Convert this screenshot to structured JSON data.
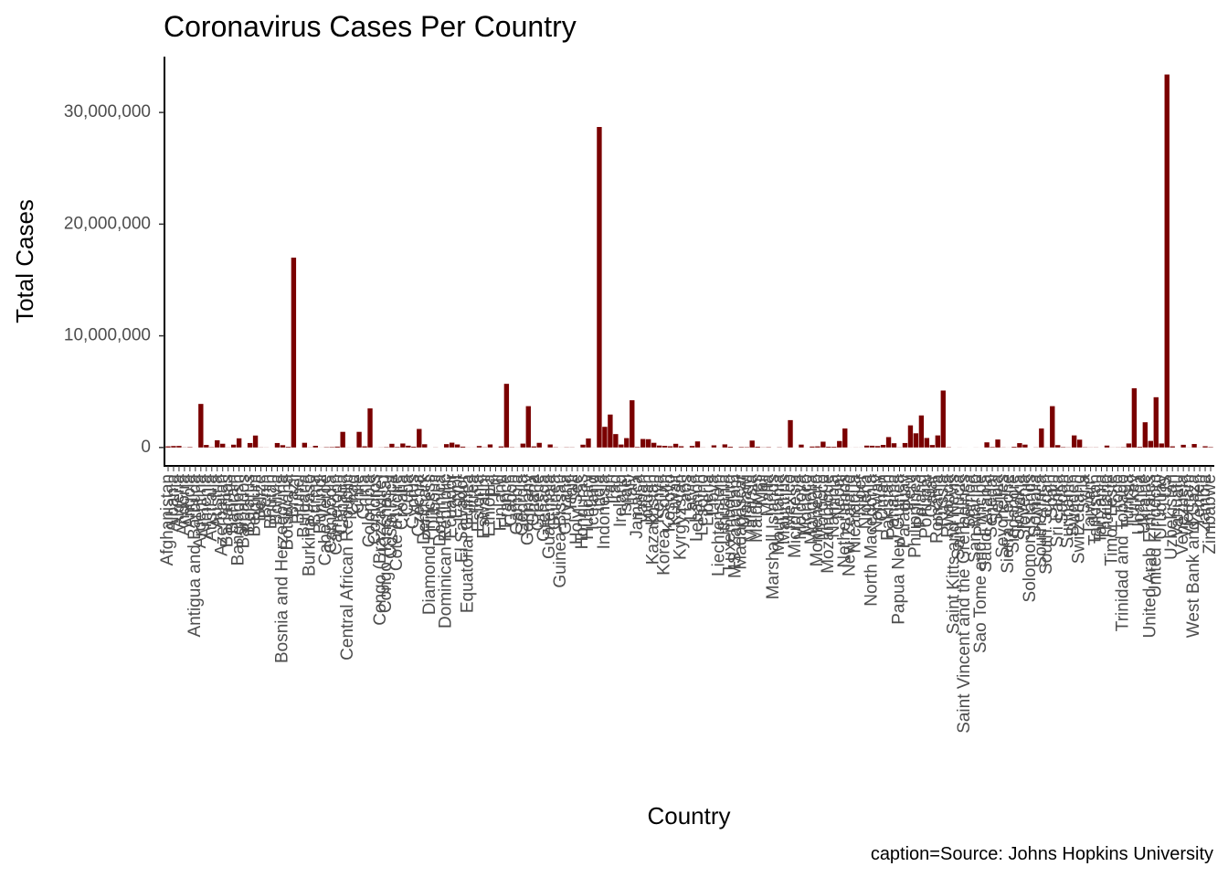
{
  "chart_data": {
    "type": "bar",
    "title": "Coronavirus Cases Per Country",
    "x_label": "Country",
    "y_label": "Total Cases",
    "caption": "caption=Source: Johns Hopkins University",
    "color": "#7a0000",
    "ylim": [
      -1650000,
      35000000
    ],
    "yticks": [
      0,
      {
        "value": 10000000,
        "label": "10,000,000"
      },
      {
        "value": 20000000,
        "label": "20,000,000"
      },
      {
        "value": 30000000,
        "label": "30,000,000"
      }
    ],
    "grid": false,
    "categories": [
      "Afghanistan",
      "Albania",
      "Algeria",
      "Andorra",
      "Angola",
      "Antigua and Barbuda",
      "Argentina",
      "Armenia",
      "Australia",
      "Austria",
      "Azerbaijan",
      "Bahamas",
      "Bahrain",
      "Bangladesh",
      "Barbados",
      "Belarus",
      "Belgium",
      "Belize",
      "Benin",
      "Bhutan",
      "Bolivia",
      "Bosnia and Herzegovina",
      "Botswana",
      "Brazil",
      "Brunei",
      "Bulgaria",
      "Burkina Faso",
      "Burma",
      "Burundi",
      "Cabo Verde",
      "Cambodia",
      "Cameroon",
      "Canada",
      "Central African Republic",
      "Chad",
      "Chile",
      "China",
      "Colombia",
      "Comoros",
      "Congo (Brazzaville)",
      "Congo (Kinshasa)",
      "Costa Rica",
      "Cote d'Ivoire",
      "Croatia",
      "Cuba",
      "Cyprus",
      "Czechia",
      "Denmark",
      "Diamond Princess",
      "Djibouti",
      "Dominica",
      "Dominican Republic",
      "Ecuador",
      "Egypt",
      "El Salvador",
      "Equatorial Guinea",
      "Eritrea",
      "Estonia",
      "Eswatini",
      "Ethiopia",
      "Fiji",
      "Finland",
      "France",
      "Gabon",
      "Gambia",
      "Georgia",
      "Germany",
      "Ghana",
      "Greece",
      "Grenada",
      "Guatemala",
      "Guinea",
      "Guinea-Bissau",
      "Guyana",
      "Haiti",
      "Holy See",
      "Honduras",
      "Hungary",
      "Iceland",
      "India",
      "Indonesia",
      "Iran",
      "Iraq",
      "Ireland",
      "Israel",
      "Italy",
      "Jamaica",
      "Japan",
      "Jordan",
      "Kazakhstan",
      "Kenya",
      "Korea, South",
      "Kosovo",
      "Kuwait",
      "Kyrgyzstan",
      "Laos",
      "Latvia",
      "Lebanon",
      "Lesotho",
      "Liberia",
      "Libya",
      "Liechtenstein",
      "Lithuania",
      "Luxembourg",
      "MS Zaandam",
      "Madagascar",
      "Malawi",
      "Malaysia",
      "Maldives",
      "Mali",
      "Malta",
      "Marshall Islands",
      "Mauritania",
      "Mauritius",
      "Mexico",
      "Micronesia",
      "Moldova",
      "Monaco",
      "Mongolia",
      "Montenegro",
      "Morocco",
      "Mozambique",
      "Namibia",
      "Nepal",
      "Netherlands",
      "New Zealand",
      "Nicaragua",
      "Niger",
      "Nigeria",
      "North Macedonia",
      "Norway",
      "Oman",
      "Pakistan",
      "Panama",
      "Papua New Guinea",
      "Paraguay",
      "Peru",
      "Philippines",
      "Poland",
      "Portugal",
      "Qatar",
      "Romania",
      "Russia",
      "Rwanda",
      "Saint Kitts and Nevis",
      "Saint Lucia",
      "Saint Vincent and the Grenadines",
      "Samoa",
      "San Marino",
      "Sao Tome and Principe",
      "Saudi Arabia",
      "Senegal",
      "Serbia",
      "Seychelles",
      "Sierra Leone",
      "Singapore",
      "Slovakia",
      "Slovenia",
      "Solomon Islands",
      "Somalia",
      "South Africa",
      "South Sudan",
      "Spain",
      "Sri Lanka",
      "Sudan",
      "Suriname",
      "Sweden",
      "Switzerland",
      "Syria",
      "Taiwan*",
      "Tajikistan",
      "Tanzania",
      "Thailand",
      "Timor-Leste",
      "Togo",
      "Trinidad and Tobago",
      "Tunisia",
      "Turkey",
      "Uganda",
      "Ukraine",
      "United Arab Emirates",
      "United Kingdom",
      "Uruguay",
      "US",
      "Uzbekistan",
      "Vanuatu",
      "Venezuela",
      "Vietnam",
      "West Bank and Gaza",
      "Yemen",
      "Zambia",
      "Zimbabwe"
    ],
    "values": [
      100000,
      132000,
      138000,
      13800,
      38000,
      1260,
      3900000,
      224000,
      30000,
      648000,
      335000,
      12000,
      250000,
      820000,
      4000,
      400000,
      1070000,
      13000,
      8200,
      1900,
      400000,
      205000,
      60000,
      17000000,
      250,
      420000,
      13500,
      150000,
      5000,
      31000,
      40000,
      80000,
      1400000,
      7000,
      5000,
      1400000,
      103000,
      3500000,
      4000,
      12000,
      33000,
      330000,
      48000,
      357000,
      160000,
      73000,
      1660000,
      290000,
      712,
      11600,
      190,
      300000,
      430000,
      270000,
      76000,
      8500,
      5300,
      131000,
      19000,
      273000,
      2000,
      94000,
      5700000,
      24000,
      6000,
      347000,
      3700000,
      95000,
      415000,
      160,
      270000,
      23000,
      3800,
      19000,
      16000,
      27,
      250000,
      808000,
      6600,
      28700000,
      1850000,
      2950000,
      1200000,
      265000,
      839000,
      4230000,
      49000,
      760000,
      742000,
      420000,
      172000,
      145000,
      107000,
      330000,
      110000,
      2000,
      136000,
      543000,
      10800,
      2200,
      190000,
      3000,
      278000,
      70000,
      9,
      42000,
      34000,
      620000,
      72000,
      14000,
      30600,
      4,
      20000,
      1500,
      2450000,
      1,
      256000,
      2500,
      85000,
      100000,
      520000,
      71000,
      62000,
      580000,
      1700000,
      2700,
      7000,
      5400,
      167000,
      155000,
      128000,
      230000,
      930000,
      380000,
      16000,
      400000,
      1980000,
      1270000,
      2870000,
      850000,
      220000,
      1080000,
      5100000,
      28000,
      450,
      5200,
      2000,
      3,
      5090,
      2350,
      460000,
      42000,
      715000,
      13000,
      4300,
      62000,
      390000,
      256000,
      20,
      14700,
      1700000,
      10700,
      3700000,
      210000,
      36000,
      17000,
      1080000,
      700000,
      25000,
      11000,
      13300,
      509,
      170000,
      8000,
      13500,
      27000,
      360000,
      5300000,
      60000,
      2260000,
      590000,
      4500000,
      360000,
      33400000,
      102000,
      4,
      240000,
      8000,
      310000,
      6800,
      110000,
      39000
    ]
  }
}
